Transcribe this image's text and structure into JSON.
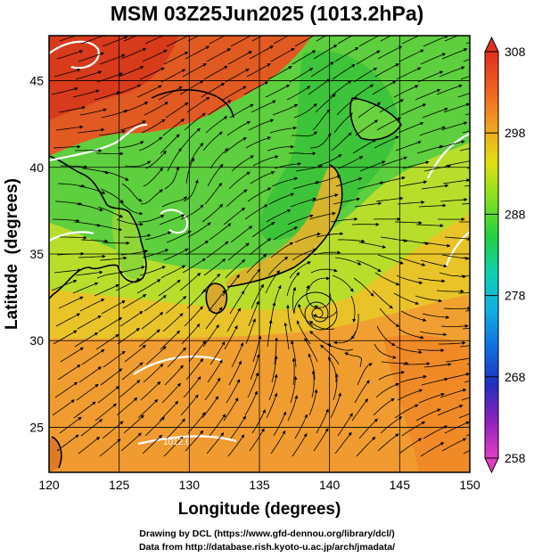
{
  "title": "MSM 03Z25Jun2025 (1013.2hPa)",
  "chart_data": {
    "type": "heatmap",
    "title": "MSM 03Z25Jun2025 (1013.2hPa)",
    "xlabel": "Longitude (degrees)",
    "ylabel": "Latitude  (degrees)",
    "xlim": [
      120,
      150
    ],
    "ylim": [
      22.4,
      47.6
    ],
    "x_ticks": [
      120,
      125,
      130,
      135,
      140,
      145,
      150
    ],
    "y_ticks": [
      25,
      30,
      35,
      40,
      45
    ],
    "grid": true,
    "colorbar": {
      "range": [
        258,
        308
      ],
      "ticks": [
        258,
        268,
        278,
        288,
        298,
        308
      ],
      "colors": [
        "#e040c0",
        "#9020c0",
        "#2030c0",
        "#1070e0",
        "#10b0e0",
        "#10d0b0",
        "#20d040",
        "#80e020",
        "#e0e010",
        "#f0a020",
        "#f06020",
        "#e03020"
      ]
    },
    "field_colors": {
      "ocean_south": "#f0a030",
      "ocean_warm": "#f08020",
      "north_hot": "#e04020",
      "mid_green": "#60d040",
      "yellow_green": "#b0e030",
      "coastline": "#000000",
      "contour": "#ffffff"
    },
    "contour_labels": [
      "1012.6"
    ],
    "features": {
      "cyclone_center": [
        139.3,
        32.8
      ],
      "eddy_centers": [
        [
          126.5,
          37.6
        ],
        [
          129.8,
          38.2
        ],
        [
          139.0,
          41.2
        ]
      ]
    }
  },
  "credits": {
    "line1": "Drawing by DCL (https://www.gfd-dennou.org/library/dcl/)",
    "line2": "Data from http://database.rish.kyoto-u.ac.jp/arch/jmadata/"
  }
}
